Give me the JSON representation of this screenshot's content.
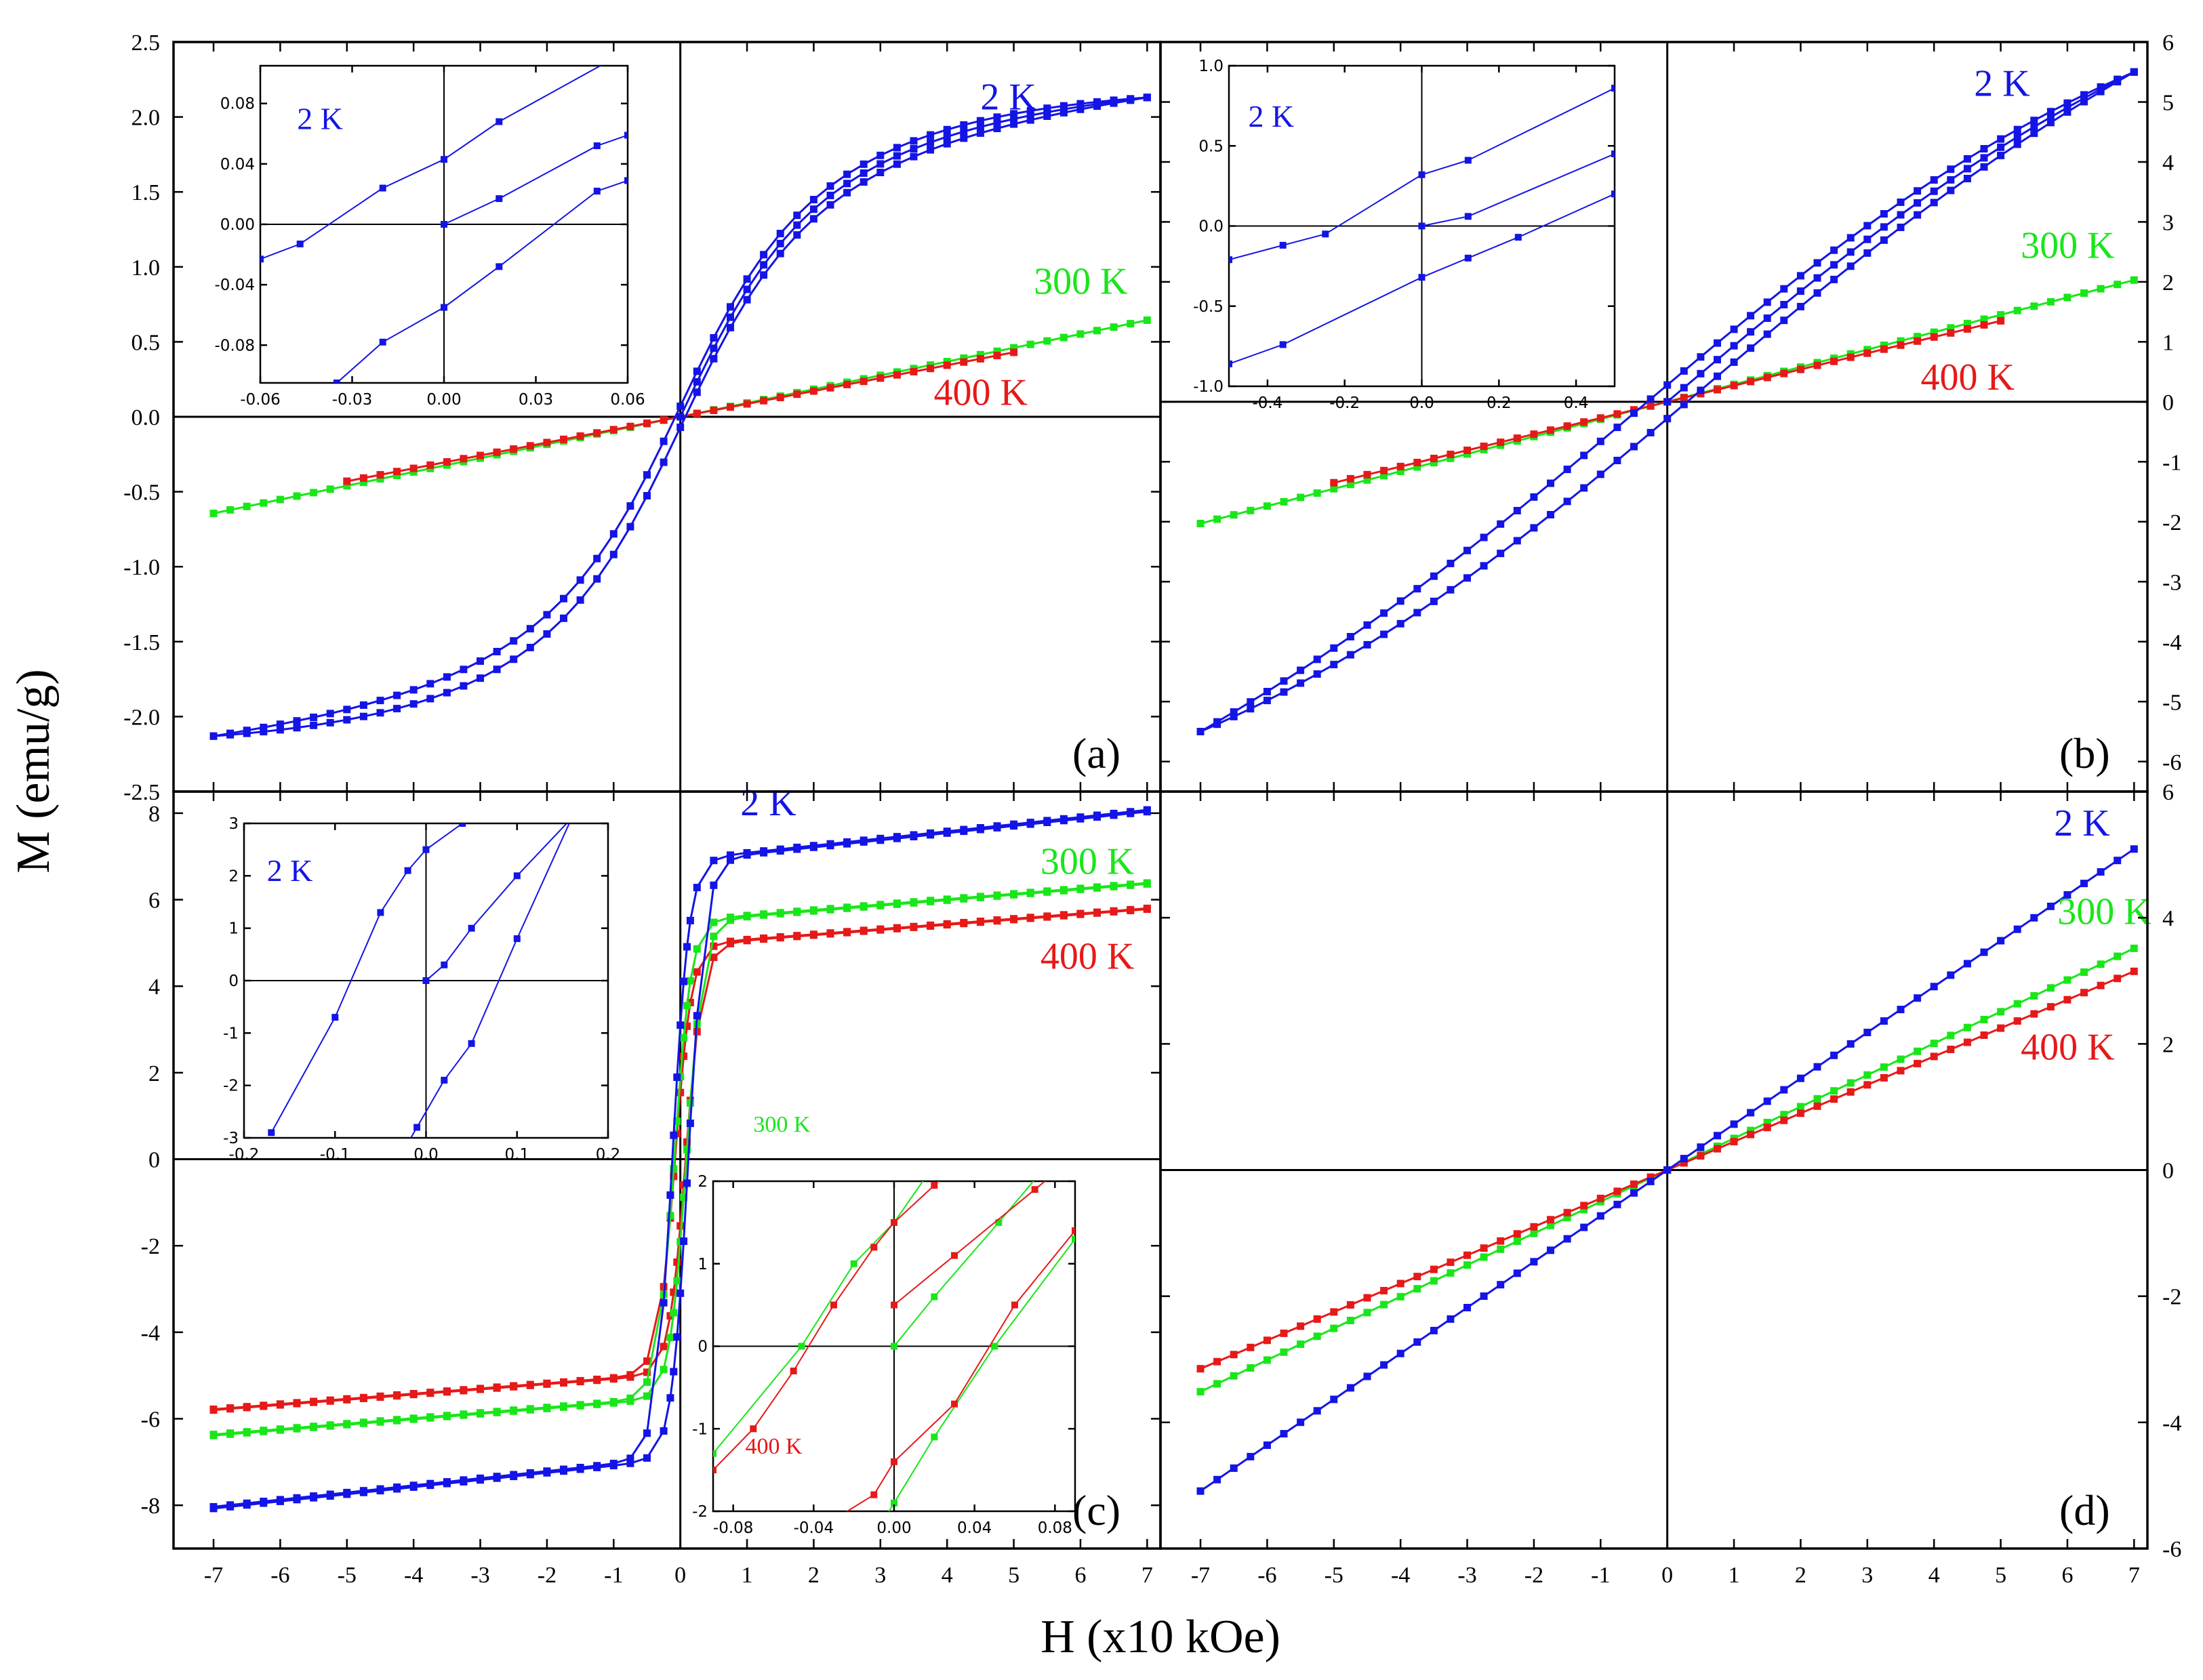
{
  "figure": {
    "ylabel": "M (emu/g)",
    "xlabel": "H (x10 kOe)",
    "colors": {
      "2K": "#1414e6",
      "300K": "#19e619",
      "400K": "#e61919"
    }
  },
  "chart_data": [
    {
      "type": "line",
      "panel": "a",
      "panel_label": "(a)",
      "y_axis_side": "left",
      "xlim": [
        -7.6,
        7.2
      ],
      "ylim": [
        -2.5,
        2.5
      ],
      "yticks": [
        -2.5,
        -2.0,
        -1.5,
        -1.0,
        -0.5,
        0.0,
        0.5,
        1.0,
        1.5,
        2.0,
        2.5
      ],
      "ytick_labels": [
        "-2.5",
        "-2.0",
        "-1.5",
        "-1.0",
        "-0.5",
        "0.0",
        "0.5",
        "1.0",
        "1.5",
        "2.0",
        "2.5"
      ],
      "series": [
        {
          "name": "2 K",
          "kind": "hysteresis",
          "hmax": 7,
          "mmax": 2.13,
          "hk": 1.7,
          "loop_width": 0.07,
          "color_key": "2K"
        },
        {
          "name": "300 K",
          "kind": "linear",
          "xmin": -7,
          "xmax": 7,
          "slope": 0.092,
          "color_key": "300K"
        },
        {
          "name": "400 K",
          "kind": "linear",
          "xmin": -5,
          "xmax": 5,
          "slope": 0.086,
          "color_key": "400K"
        }
      ],
      "labels": [
        {
          "text": "2 K",
          "color_key": "2K",
          "at": [
            4.5,
            2.05
          ]
        },
        {
          "text": "300 K",
          "color_key": "300K",
          "at": [
            5.3,
            0.82
          ]
        },
        {
          "text": "400 K",
          "color_key": "400K",
          "at": [
            3.8,
            0.08
          ]
        }
      ],
      "insets": [
        {
          "xlim": [
            -0.06,
            0.06
          ],
          "ylim": [
            -0.105,
            0.105
          ],
          "xticks": [
            -0.06,
            -0.03,
            0.0,
            0.03,
            0.06
          ],
          "xtick_labels": [
            "-0.06",
            "-0.03",
            "0.00",
            "0.03",
            "0.06"
          ],
          "yticks": [
            -0.08,
            -0.04,
            0.0,
            0.04,
            0.08
          ],
          "ytick_labels": [
            "-0.08",
            "-0.04",
            "0.00",
            "0.04",
            "0.08"
          ],
          "label": {
            "text": "2 K",
            "color_key": "2K",
            "at": [
              -0.048,
              0.063
            ]
          },
          "lines": [
            {
              "color_key": "2K",
              "x": [
                -0.06,
                -0.047,
                -0.02,
                0.0,
                0.018,
                0.06
              ],
              "y": [
                -0.023,
                -0.013,
                0.024,
                0.043,
                0.068,
                0.115
              ]
            },
            {
              "color_key": "2K",
              "x": [
                0.0,
                0.018,
                0.05,
                0.06
              ],
              "y": [
                0.0,
                0.017,
                0.052,
                0.059
              ]
            },
            {
              "color_key": "2K",
              "x": [
                -0.035,
                -0.02,
                0.0,
                0.018,
                0.05,
                0.06
              ],
              "y": [
                -0.105,
                -0.078,
                -0.055,
                -0.028,
                0.022,
                0.029
              ]
            }
          ]
        }
      ]
    },
    {
      "type": "line",
      "panel": "b",
      "panel_label": "(b)",
      "y_axis_side": "right",
      "xlim": [
        -7.6,
        7.2
      ],
      "ylim": [
        -6.5,
        6.0
      ],
      "yticks": [
        -6,
        -5,
        -4,
        -3,
        -2,
        -1,
        0,
        1,
        2,
        3,
        4,
        5,
        6
      ],
      "ytick_labels": [
        "-6",
        "-5",
        "-4",
        "-3",
        "-2",
        "-1",
        "0",
        "1",
        "2",
        "3",
        "4",
        "5",
        "6"
      ],
      "series": [
        {
          "name": "2 K",
          "kind": "hysteresis",
          "hmax": 7,
          "mmax": 5.5,
          "hk": 8.5,
          "loop_width": 0.28,
          "color_key": "2K"
        },
        {
          "name": "300 K",
          "kind": "linear",
          "xmin": -7,
          "xmax": 7,
          "slope": 0.29,
          "color_key": "300K"
        },
        {
          "name": "400 K",
          "kind": "linear",
          "xmin": -5,
          "xmax": 5,
          "slope": 0.27,
          "color_key": "400K"
        }
      ],
      "labels": [
        {
          "text": "2 K",
          "color_key": "2K",
          "at": [
            4.6,
            5.1
          ]
        },
        {
          "text": "300 K",
          "color_key": "300K",
          "at": [
            5.3,
            2.4
          ]
        },
        {
          "text": "400 K",
          "color_key": "400K",
          "at": [
            3.8,
            0.2
          ]
        }
      ],
      "insets": [
        {
          "xlim": [
            -0.5,
            0.5
          ],
          "ylim": [
            -1.0,
            1.0
          ],
          "xticks": [
            -0.4,
            -0.2,
            0.0,
            0.2,
            0.4
          ],
          "xtick_labels": [
            "-0.4",
            "-0.2",
            "0.0",
            "0.2",
            "0.4"
          ],
          "yticks": [
            -1.0,
            -0.5,
            0.0,
            0.5,
            1.0
          ],
          "ytick_labels": [
            "-1.0",
            "-0.5",
            "0.0",
            "0.5",
            "1.0"
          ],
          "label": {
            "text": "2 K",
            "color_key": "2K",
            "at": [
              -0.45,
              0.62
            ]
          },
          "lines": [
            {
              "color_key": "2K",
              "x": [
                -0.5,
                -0.36,
                -0.25,
                0.0,
                0.12,
                0.5
              ],
              "y": [
                -0.21,
                -0.12,
                -0.05,
                0.32,
                0.41,
                0.86
              ]
            },
            {
              "color_key": "2K",
              "x": [
                0.0,
                0.12,
                0.5
              ],
              "y": [
                0.0,
                0.06,
                0.45
              ]
            },
            {
              "color_key": "2K",
              "x": [
                -0.5,
                -0.36,
                0.0,
                0.12,
                0.25,
                0.5
              ],
              "y": [
                -0.86,
                -0.74,
                -0.32,
                -0.2,
                -0.07,
                0.2
              ]
            }
          ]
        }
      ]
    },
    {
      "type": "line",
      "panel": "c",
      "panel_label": "(c)",
      "y_axis_side": "left",
      "xlim": [
        -7.6,
        7.2
      ],
      "ylim": [
        -9.0,
        8.5
      ],
      "yticks": [
        -8,
        -6,
        -4,
        -2,
        0,
        2,
        4,
        6,
        8
      ],
      "ytick_labels": [
        "-8",
        "-6",
        "-4",
        "-2",
        "0",
        "2",
        "4",
        "6",
        "8"
      ],
      "series": [
        {
          "name": "2 K",
          "kind": "saturating",
          "ms": 6.9,
          "chi": 0.165,
          "hc": 0.12,
          "color_key": "2K"
        },
        {
          "name": "300 K",
          "kind": "saturating",
          "ms": 5.5,
          "chi": 0.125,
          "hc": 0.09,
          "color_key": "300K"
        },
        {
          "name": "400 K",
          "kind": "saturating",
          "ms": 4.95,
          "chi": 0.12,
          "hc": 0.08,
          "color_key": "400K"
        }
      ],
      "labels": [
        {
          "text": "2 K",
          "color_key": "2K",
          "at": [
            0.9,
            7.95
          ]
        },
        {
          "text": "300 K",
          "color_key": "300K",
          "at": [
            5.4,
            6.6
          ]
        },
        {
          "text": "400 K",
          "color_key": "400K",
          "at": [
            5.4,
            4.4
          ]
        }
      ],
      "insets": [
        {
          "xlim": [
            -0.2,
            0.2
          ],
          "ylim": [
            -3,
            3
          ],
          "xticks": [
            -0.2,
            -0.1,
            0.0,
            0.1,
            0.2
          ],
          "xtick_labels": [
            "-0.2",
            "-0.1",
            "0.0",
            "0.1",
            "0.2"
          ],
          "yticks": [
            -3,
            -2,
            -1,
            0,
            1,
            2,
            3
          ],
          "ytick_labels": [
            "-3",
            "-2",
            "-1",
            "0",
            "1",
            "2",
            "3"
          ],
          "label": {
            "text": "2 K",
            "color_key": "2K",
            "at": [
              -0.175,
              1.9
            ]
          },
          "lines": [
            {
              "color_key": "2K",
              "x": [
                -0.17,
                -0.1,
                -0.05,
                -0.02,
                0.0,
                0.04,
                0.08
              ],
              "y": [
                -2.9,
                -0.7,
                1.3,
                2.1,
                2.5,
                3.0,
                3.5
              ]
            },
            {
              "color_key": "2K",
              "x": [
                0.0,
                0.02,
                0.05,
                0.1,
                0.16
              ],
              "y": [
                0.0,
                0.3,
                1.0,
                2.0,
                3.1
              ]
            },
            {
              "color_key": "2K",
              "x": [
                -0.02,
                -0.01,
                0.02,
                0.05,
                0.1,
                0.16
              ],
              "y": [
                -3.1,
                -2.8,
                -1.9,
                -1.2,
                0.8,
                3.1
              ]
            }
          ]
        },
        {
          "xlim": [
            -0.09,
            0.09
          ],
          "ylim": [
            -2,
            2
          ],
          "xticks": [
            -0.08,
            -0.04,
            0.0,
            0.04,
            0.08
          ],
          "xtick_labels": [
            "-0.08",
            "-0.04",
            "0.00",
            "0.04",
            "0.08"
          ],
          "yticks": [
            -2,
            -1,
            0,
            1,
            2
          ],
          "ytick_labels": [
            "-2",
            "-1",
            "0",
            "1",
            "2"
          ],
          "labels": [
            {
              "text": "300 K",
              "color_key": "300K",
              "at": [
                -0.07,
                2.6
              ]
            },
            {
              "text": "400 K",
              "color_key": "400K",
              "at": [
                -0.074,
                -1.3
              ]
            }
          ],
          "lines": [
            {
              "color_key": "300K",
              "x": [
                -0.09,
                -0.046,
                -0.02,
                0.0,
                0.02
              ],
              "y": [
                -1.3,
                0.0,
                1.0,
                1.5,
                2.2
              ]
            },
            {
              "color_key": "300K",
              "x": [
                0.0,
                0.02,
                0.052,
                0.09
              ],
              "y": [
                0.0,
                0.6,
                1.5,
                2.6
              ]
            },
            {
              "color_key": "300K",
              "x": [
                -0.01,
                0.0,
                0.02,
                0.05,
                0.09
              ],
              "y": [
                -2.3,
                -1.9,
                -1.1,
                0.0,
                1.3
              ]
            },
            {
              "color_key": "400K",
              "x": [
                -0.09,
                -0.07,
                -0.05,
                -0.03,
                -0.01,
                0.0,
                0.02,
                0.04
              ],
              "y": [
                -1.5,
                -1.0,
                -0.3,
                0.5,
                1.2,
                1.5,
                1.95,
                2.4
              ]
            },
            {
              "color_key": "400K",
              "x": [
                0.0,
                0.03,
                0.07,
                0.09
              ],
              "y": [
                0.5,
                1.1,
                1.9,
                2.3
              ]
            },
            {
              "color_key": "400K",
              "x": [
                -0.03,
                -0.01,
                0.0,
                0.03,
                0.06,
                0.09
              ],
              "y": [
                -2.1,
                -1.8,
                -1.4,
                -0.7,
                0.5,
                1.4
              ]
            }
          ]
        }
      ]
    },
    {
      "type": "line",
      "panel": "d",
      "panel_label": "(d)",
      "y_axis_side": "right",
      "xlim": [
        -7.6,
        7.2
      ],
      "ylim": [
        -6.0,
        6.0
      ],
      "yticks": [
        -6,
        -4,
        -2,
        0,
        2,
        4,
        6
      ],
      "ytick_labels": [
        "-6",
        "-4",
        "-2",
        "0",
        "2",
        "4",
        "6"
      ],
      "series": [
        {
          "name": "2 K",
          "kind": "linear",
          "xmin": -7,
          "xmax": 7,
          "slope": 0.727,
          "color_key": "2K"
        },
        {
          "name": "300 K",
          "kind": "linear",
          "xmin": -7,
          "xmax": 7,
          "slope": 0.502,
          "color_key": "300K"
        },
        {
          "name": "400 K",
          "kind": "linear",
          "xmin": -7,
          "xmax": 7,
          "slope": 0.45,
          "color_key": "400K"
        }
      ],
      "labels": [
        {
          "text": "2 K",
          "color_key": "2K",
          "at": [
            5.8,
            5.3
          ]
        },
        {
          "text": "300 K",
          "color_key": "300K",
          "at": [
            5.85,
            3.9
          ]
        },
        {
          "text": "400 K",
          "color_key": "400K",
          "at": [
            5.3,
            1.75
          ]
        }
      ],
      "insets": []
    }
  ],
  "x_axis": {
    "ticks": [
      -7,
      -6,
      -5,
      -4,
      -3,
      -2,
      -1,
      0,
      1,
      2,
      3,
      4,
      5,
      6,
      7
    ],
    "tick_labels": [
      "-7",
      "-6",
      "-5",
      "-4",
      "-3",
      "-2",
      "-1",
      "0",
      "1",
      "2",
      "3",
      "4",
      "5",
      "6",
      "7"
    ]
  }
}
